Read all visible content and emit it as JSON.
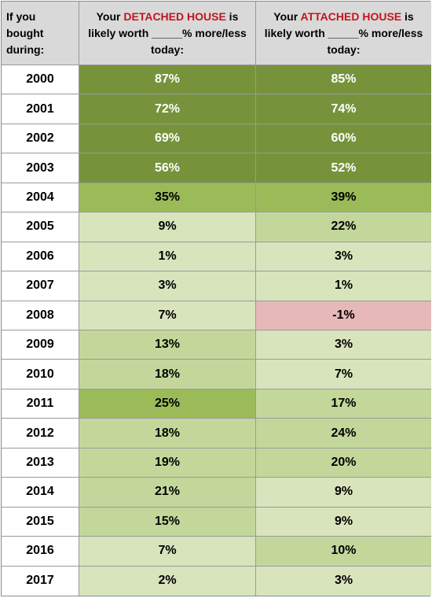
{
  "header": {
    "col1": "If you bought during:",
    "col2_pre": "Your ",
    "col2_accent": "DETACHED HOUSE",
    "col2_post": " is likely worth _____% more/less today:",
    "col3_pre": "Your ",
    "col3_accent": "ATTACHED HOUSE",
    "col3_post": " is likely worth _____% more/less today:"
  },
  "colors": {
    "header_bg": "#d9d9d9",
    "accent_text": "#c0161c",
    "dark_green": "#76933c",
    "mid_green": "#9bbb59",
    "light_green": "#c4d79b",
    "pale_green": "#d8e4bc",
    "pink": "#e6b8b7"
  },
  "chart_data": {
    "type": "table",
    "columns": [
      "If you bought during:",
      "Your DETACHED HOUSE is likely worth _____% more/less today:",
      "Your ATTACHED HOUSE is likely worth _____% more/less today:"
    ],
    "rows": [
      {
        "year": "2000",
        "detached": "87%",
        "attached": "85%",
        "d_shade": "dark",
        "a_shade": "dark"
      },
      {
        "year": "2001",
        "detached": "72%",
        "attached": "74%",
        "d_shade": "dark",
        "a_shade": "dark"
      },
      {
        "year": "2002",
        "detached": "69%",
        "attached": "60%",
        "d_shade": "dark",
        "a_shade": "dark"
      },
      {
        "year": "2003",
        "detached": "56%",
        "attached": "52%",
        "d_shade": "dark",
        "a_shade": "dark"
      },
      {
        "year": "2004",
        "detached": "35%",
        "attached": "39%",
        "d_shade": "mid",
        "a_shade": "mid"
      },
      {
        "year": "2005",
        "detached": "9%",
        "attached": "22%",
        "d_shade": "pale",
        "a_shade": "light"
      },
      {
        "year": "2006",
        "detached": "1%",
        "attached": "3%",
        "d_shade": "pale",
        "a_shade": "pale"
      },
      {
        "year": "2007",
        "detached": "3%",
        "attached": "1%",
        "d_shade": "pale",
        "a_shade": "pale"
      },
      {
        "year": "2008",
        "detached": "7%",
        "attached": "-1%",
        "d_shade": "pale",
        "a_shade": "pink"
      },
      {
        "year": "2009",
        "detached": "13%",
        "attached": "3%",
        "d_shade": "light",
        "a_shade": "pale"
      },
      {
        "year": "2010",
        "detached": "18%",
        "attached": "7%",
        "d_shade": "light",
        "a_shade": "pale"
      },
      {
        "year": "2011",
        "detached": "25%",
        "attached": "17%",
        "d_shade": "mid",
        "a_shade": "light"
      },
      {
        "year": "2012",
        "detached": "18%",
        "attached": "24%",
        "d_shade": "light",
        "a_shade": "light"
      },
      {
        "year": "2013",
        "detached": "19%",
        "attached": "20%",
        "d_shade": "light",
        "a_shade": "light"
      },
      {
        "year": "2014",
        "detached": "21%",
        "attached": "9%",
        "d_shade": "light",
        "a_shade": "pale"
      },
      {
        "year": "2015",
        "detached": "15%",
        "attached": "9%",
        "d_shade": "light",
        "a_shade": "pale"
      },
      {
        "year": "2016",
        "detached": "7%",
        "attached": "10%",
        "d_shade": "pale",
        "a_shade": "light"
      },
      {
        "year": "2017",
        "detached": "2%",
        "attached": "3%",
        "d_shade": "pale",
        "a_shade": "pale"
      }
    ]
  }
}
